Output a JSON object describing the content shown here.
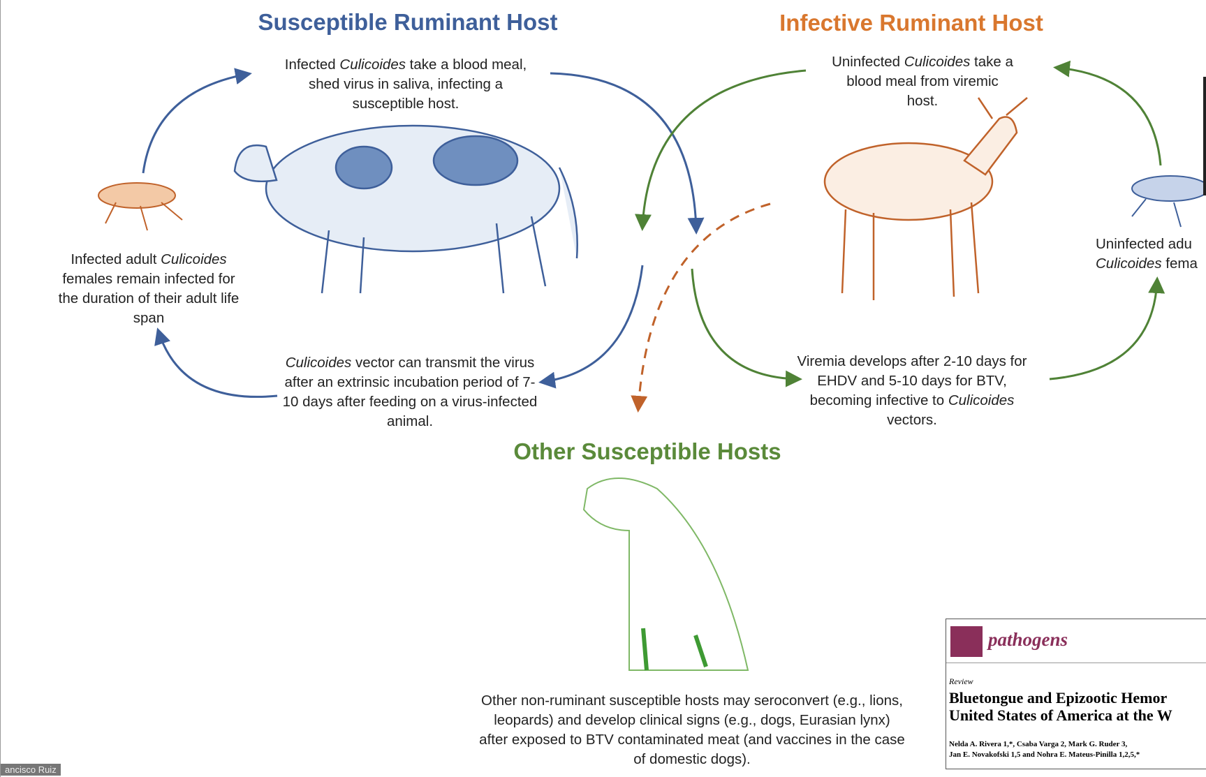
{
  "titles": {
    "susceptible": "Susceptible Ruminant Host",
    "infective": "Infective Ruminant Host",
    "other": "Other Susceptible Hosts"
  },
  "captions": {
    "blood_meal": [
      "Infected ",
      "Culicoides",
      " take a blood meal, shed virus in saliva, infecting a susceptible host."
    ],
    "adult_infected": [
      "Infected adult ",
      "Culicoides",
      " females remain infected for the duration of their adult life span"
    ],
    "incubation": [
      "Culicoides",
      " vector can transmit the virus after an extrinsic incubation period of 7-10 days after feeding on a virus-infected animal."
    ],
    "uninfected_meal": [
      "Uninfected ",
      "Culicoides",
      " take a blood meal from viremic host."
    ],
    "viremia": [
      "Viremia develops after 2-10 days for EHDV and 5-10 days for BTV, becoming infective to ",
      "Culicoides",
      " vectors."
    ],
    "uninfected_adult": [
      "Uninfected adu",
      "Culicoides",
      " fema"
    ],
    "other_hosts": "Other non-ruminant susceptible hosts may seroconvert (e.g., lions, leopards) and develop clinical signs (e.g., dogs, Eurasian lynx) after exposed to BTV contaminated meat (and vaccines in the case of domestic dogs)."
  },
  "paper": {
    "journal": "pathogens",
    "kind": "Review",
    "title_lines": [
      "Bluetongue and Epizootic Hemor",
      "United States of America at the W"
    ],
    "author_lines": [
      "Nelda A. Rivera 1,*, Csaba Varga 2, Mark G. Ruder 3,",
      "Jan E. Novakofski 1,5 and Nohra E. Mateus-Pinilla 1,2,5,*"
    ]
  },
  "speaker": "ancisco Ruiz"
}
